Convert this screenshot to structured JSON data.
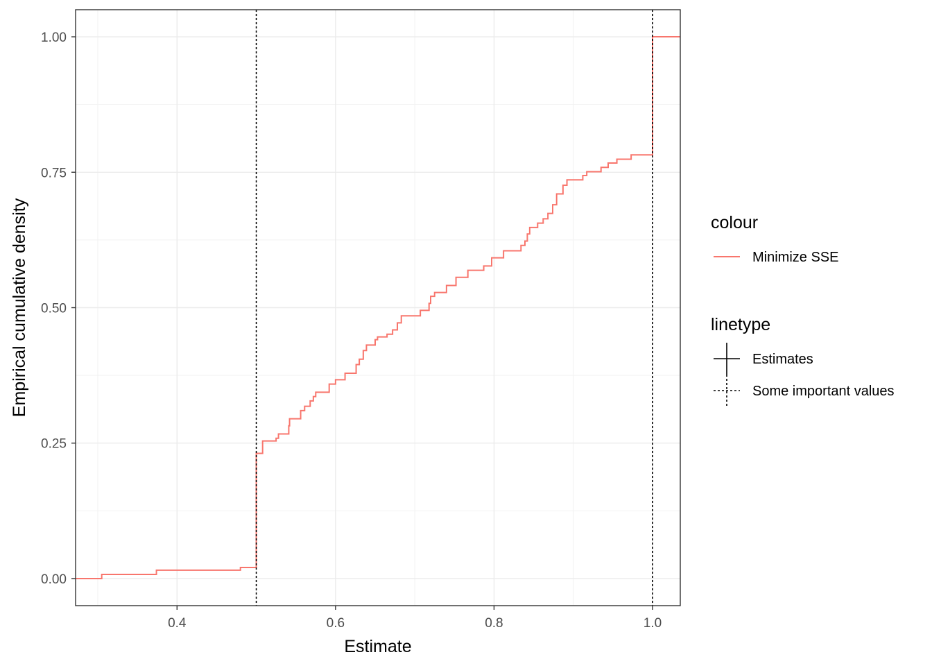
{
  "chart_data": {
    "type": "line",
    "xlabel": "Estimate",
    "ylabel": "Empirical cumulative density",
    "xlim": [
      0.272,
      1.035
    ],
    "ylim": [
      -0.05,
      1.05
    ],
    "x_ticks": [
      0.4,
      0.6,
      0.8,
      1.0
    ],
    "x_tick_labels": [
      "0.4",
      "0.6",
      "0.8",
      "1.0"
    ],
    "y_ticks": [
      0.0,
      0.25,
      0.5,
      0.75,
      1.0
    ],
    "y_tick_labels": [
      "0.00",
      "0.25",
      "0.50",
      "0.75",
      "1.00"
    ],
    "x_minor_ticks": [
      0.3,
      0.5,
      0.7,
      0.9
    ],
    "y_minor_ticks": [
      0.125,
      0.375,
      0.625,
      0.875
    ],
    "grid": true,
    "legend_position": "right",
    "series": [
      {
        "name": "Minimize SSE",
        "color": "#F8766D",
        "step": true,
        "points": [
          [
            0.272,
            0.0
          ],
          [
            0.305,
            0.0
          ],
          [
            0.305,
            0.0077
          ],
          [
            0.374,
            0.0077
          ],
          [
            0.374,
            0.0154
          ],
          [
            0.48,
            0.0154
          ],
          [
            0.48,
            0.0205
          ],
          [
            0.5,
            0.0205
          ],
          [
            0.5,
            0.231
          ],
          [
            0.508,
            0.231
          ],
          [
            0.508,
            0.254
          ],
          [
            0.525,
            0.254
          ],
          [
            0.525,
            0.259
          ],
          [
            0.528,
            0.259
          ],
          [
            0.528,
            0.267
          ],
          [
            0.541,
            0.267
          ],
          [
            0.541,
            0.282
          ],
          [
            0.542,
            0.282
          ],
          [
            0.542,
            0.295
          ],
          [
            0.556,
            0.295
          ],
          [
            0.556,
            0.31
          ],
          [
            0.561,
            0.31
          ],
          [
            0.561,
            0.318
          ],
          [
            0.568,
            0.318
          ],
          [
            0.568,
            0.328
          ],
          [
            0.572,
            0.328
          ],
          [
            0.572,
            0.336
          ],
          [
            0.575,
            0.336
          ],
          [
            0.575,
            0.344
          ],
          [
            0.592,
            0.344
          ],
          [
            0.592,
            0.359
          ],
          [
            0.6,
            0.359
          ],
          [
            0.6,
            0.367
          ],
          [
            0.612,
            0.367
          ],
          [
            0.612,
            0.379
          ],
          [
            0.626,
            0.379
          ],
          [
            0.626,
            0.395
          ],
          [
            0.63,
            0.395
          ],
          [
            0.63,
            0.405
          ],
          [
            0.635,
            0.405
          ],
          [
            0.635,
            0.421
          ],
          [
            0.639,
            0.421
          ],
          [
            0.639,
            0.431
          ],
          [
            0.65,
            0.431
          ],
          [
            0.65,
            0.441
          ],
          [
            0.653,
            0.441
          ],
          [
            0.653,
            0.446
          ],
          [
            0.665,
            0.446
          ],
          [
            0.665,
            0.451
          ],
          [
            0.672,
            0.451
          ],
          [
            0.672,
            0.459
          ],
          [
            0.678,
            0.459
          ],
          [
            0.678,
            0.472
          ],
          [
            0.683,
            0.472
          ],
          [
            0.683,
            0.485
          ],
          [
            0.707,
            0.485
          ],
          [
            0.707,
            0.495
          ],
          [
            0.718,
            0.495
          ],
          [
            0.718,
            0.508
          ],
          [
            0.72,
            0.508
          ],
          [
            0.72,
            0.521
          ],
          [
            0.725,
            0.521
          ],
          [
            0.725,
            0.528
          ],
          [
            0.74,
            0.528
          ],
          [
            0.74,
            0.541
          ],
          [
            0.752,
            0.541
          ],
          [
            0.752,
            0.556
          ],
          [
            0.767,
            0.556
          ],
          [
            0.767,
            0.569
          ],
          [
            0.787,
            0.569
          ],
          [
            0.787,
            0.577
          ],
          [
            0.797,
            0.577
          ],
          [
            0.797,
            0.592
          ],
          [
            0.812,
            0.592
          ],
          [
            0.812,
            0.605
          ],
          [
            0.834,
            0.605
          ],
          [
            0.834,
            0.615
          ],
          [
            0.839,
            0.615
          ],
          [
            0.839,
            0.623
          ],
          [
            0.842,
            0.623
          ],
          [
            0.842,
            0.636
          ],
          [
            0.845,
            0.636
          ],
          [
            0.845,
            0.648
          ],
          [
            0.855,
            0.648
          ],
          [
            0.855,
            0.656
          ],
          [
            0.862,
            0.656
          ],
          [
            0.862,
            0.664
          ],
          [
            0.868,
            0.664
          ],
          [
            0.868,
            0.674
          ],
          [
            0.874,
            0.674
          ],
          [
            0.874,
            0.69
          ],
          [
            0.879,
            0.69
          ],
          [
            0.879,
            0.71
          ],
          [
            0.887,
            0.71
          ],
          [
            0.887,
            0.726
          ],
          [
            0.892,
            0.726
          ],
          [
            0.892,
            0.736
          ],
          [
            0.912,
            0.736
          ],
          [
            0.912,
            0.744
          ],
          [
            0.917,
            0.744
          ],
          [
            0.917,
            0.751
          ],
          [
            0.935,
            0.751
          ],
          [
            0.935,
            0.759
          ],
          [
            0.944,
            0.759
          ],
          [
            0.944,
            0.767
          ],
          [
            0.955,
            0.767
          ],
          [
            0.955,
            0.774
          ],
          [
            0.973,
            0.774
          ],
          [
            0.973,
            0.782
          ],
          [
            1.0,
            0.782
          ],
          [
            1.0,
            1.0
          ],
          [
            1.035,
            1.0
          ]
        ]
      }
    ],
    "reference_lines": {
      "name": "Some important values",
      "orientation": "vertical",
      "x": [
        0.5,
        1.0
      ],
      "color": "#000000",
      "style": "dotted"
    },
    "legend": {
      "groups": [
        {
          "title": "colour",
          "entries": [
            {
              "label": "Minimize SSE",
              "key": "line",
              "color": "#F8766D"
            }
          ]
        },
        {
          "title": "linetype",
          "entries": [
            {
              "label": "Estimates",
              "key": "solid-cross",
              "color": "#000000"
            },
            {
              "label": "Some important values",
              "key": "dotted-cross",
              "color": "#000000"
            }
          ]
        }
      ]
    }
  }
}
